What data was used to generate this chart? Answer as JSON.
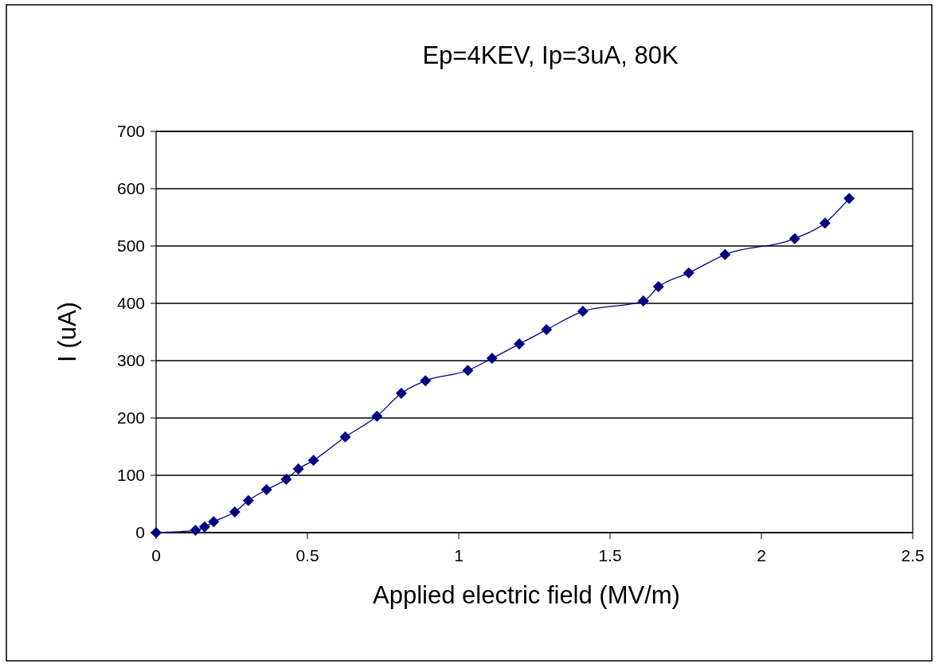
{
  "chart_data": {
    "type": "line",
    "title": "Ep=4KEV, Ip=3uA, 80K",
    "xlabel": "Applied electric field (MV/m)",
    "ylabel": "I  (uA)",
    "x": [
      0,
      0.13,
      0.16,
      0.19,
      0.26,
      0.305,
      0.365,
      0.43,
      0.47,
      0.52,
      0.625,
      0.73,
      0.81,
      0.89,
      1.03,
      1.11,
      1.2,
      1.29,
      1.41,
      1.61,
      1.66,
      1.76,
      1.88,
      2.11,
      2.21,
      2.29
    ],
    "series": [
      {
        "color": "#000080",
        "values": [
          0,
          4,
          10,
          19,
          36,
          56,
          75,
          93,
          111,
          126,
          167,
          203,
          243,
          265,
          283,
          304,
          329,
          354,
          386,
          404,
          429,
          453,
          485,
          513,
          540,
          583
        ]
      }
    ],
    "xlim": [
      0,
      2.5
    ],
    "xticks": [
      0,
      0.5,
      1,
      1.5,
      2,
      2.5
    ],
    "ylim": [
      0,
      700
    ],
    "yticks": [
      0,
      100,
      200,
      300,
      400,
      500,
      600,
      700
    ],
    "grid": "y",
    "marker": "diamond",
    "line_style": "solid"
  }
}
